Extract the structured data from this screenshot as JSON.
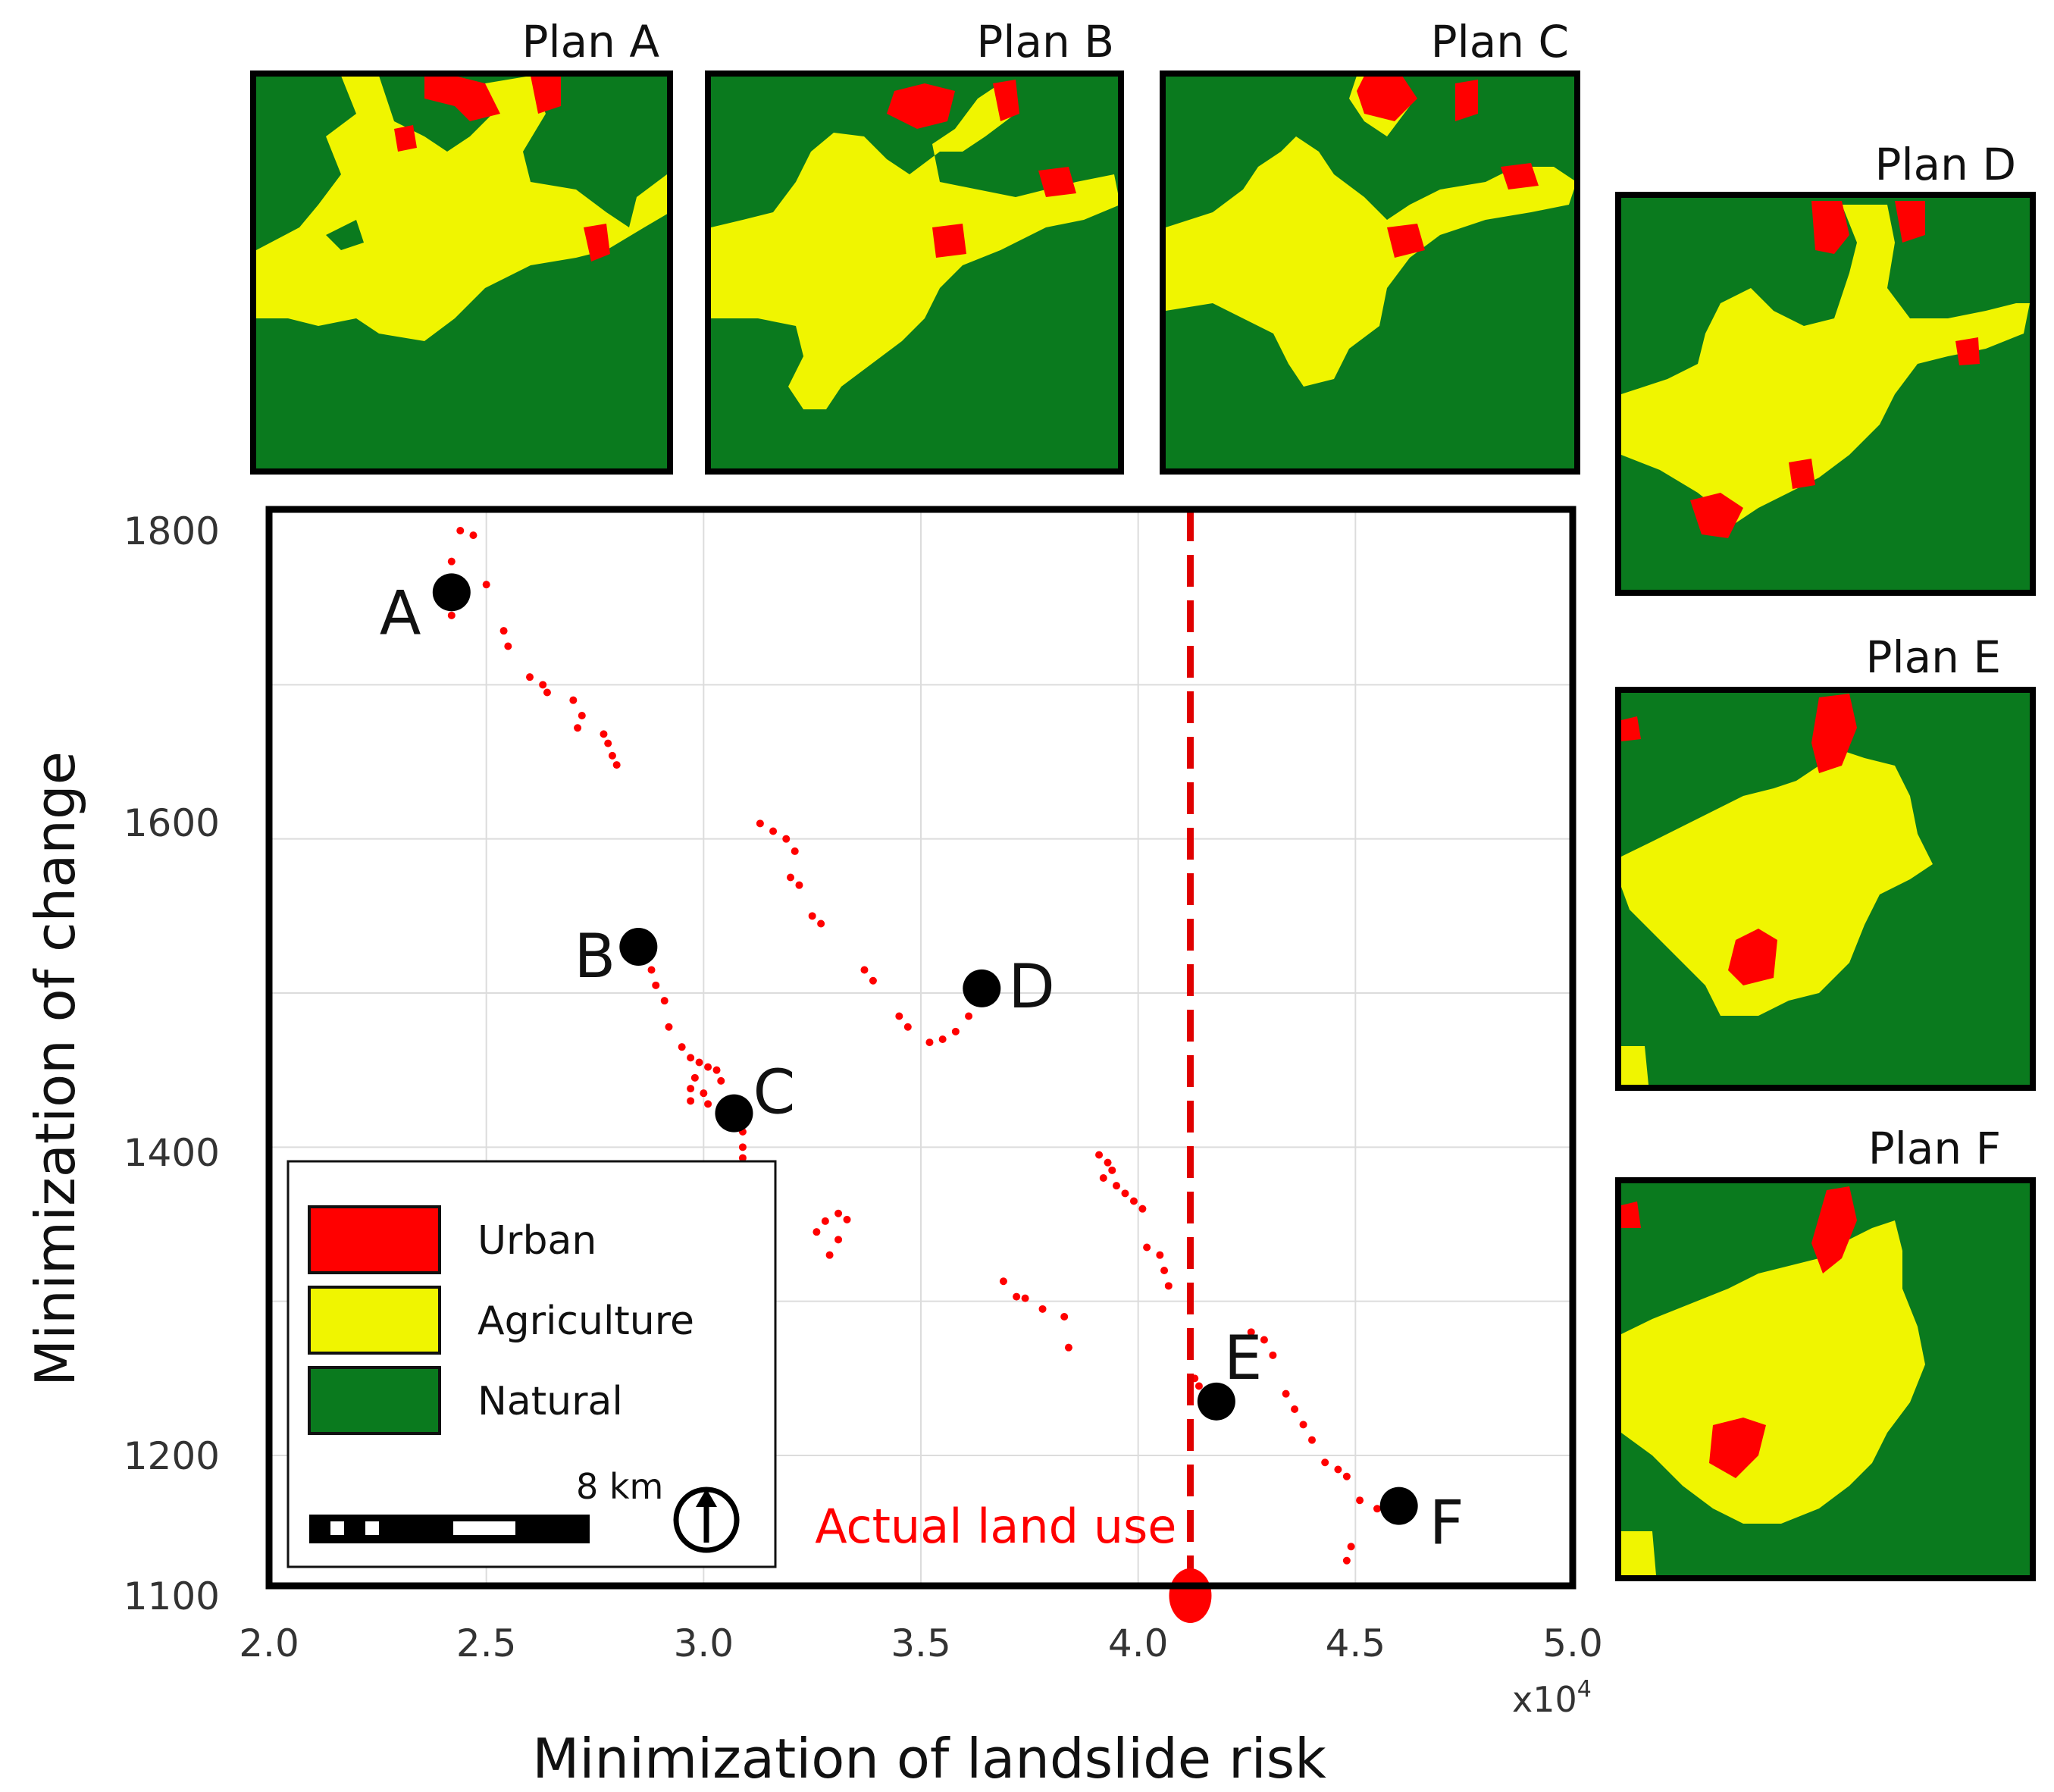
{
  "chart_data": {
    "type": "scatter",
    "xlabel": "Minimization of landslide risk",
    "ylabel": "Minimization of change",
    "x_multiplier_label": "x10",
    "x_multiplier_exponent": "4",
    "xlim": [
      2.0,
      5.0
    ],
    "ylim": [
      1100,
      1800
    ],
    "x_ticks": [
      "2.0",
      "2.5",
      "3.0",
      "3.5",
      "4.0",
      "4.5",
      "5.0"
    ],
    "y_ticks": [
      "1100",
      "1200",
      "1400",
      "1600",
      "1800"
    ],
    "x_tick_values": [
      2.0,
      2.5,
      3.0,
      3.5,
      4.0,
      4.5,
      5.0
    ],
    "y_tick_values": [
      1100,
      1200,
      1400,
      1600,
      1800
    ],
    "x_grid": [
      2.5,
      3.0,
      3.5,
      4.0,
      4.5
    ],
    "y_grid": [
      1200,
      1300,
      1400,
      1500,
      1600,
      1700
    ],
    "grid": true,
    "pareto_points": [
      [
        2.44,
        1800
      ],
      [
        2.47,
        1797
      ],
      [
        2.42,
        1780
      ],
      [
        2.5,
        1765
      ],
      [
        2.42,
        1745
      ],
      [
        2.54,
        1735
      ],
      [
        2.55,
        1725
      ],
      [
        2.6,
        1705
      ],
      [
        2.63,
        1700
      ],
      [
        2.64,
        1695
      ],
      [
        2.7,
        1690
      ],
      [
        2.72,
        1680
      ],
      [
        2.71,
        1672
      ],
      [
        2.77,
        1668
      ],
      [
        2.78,
        1662
      ],
      [
        2.79,
        1654
      ],
      [
        2.8,
        1648
      ],
      [
        3.13,
        1610
      ],
      [
        3.16,
        1605
      ],
      [
        3.19,
        1600
      ],
      [
        3.21,
        1592
      ],
      [
        3.2,
        1575
      ],
      [
        3.22,
        1570
      ],
      [
        3.25,
        1550
      ],
      [
        3.27,
        1545
      ],
      [
        3.37,
        1515
      ],
      [
        3.39,
        1508
      ],
      [
        3.45,
        1485
      ],
      [
        3.47,
        1478
      ],
      [
        3.52,
        1468
      ],
      [
        3.55,
        1470
      ],
      [
        3.58,
        1475
      ],
      [
        3.61,
        1485
      ],
      [
        2.85,
        1522
      ],
      [
        2.88,
        1515
      ],
      [
        2.89,
        1505
      ],
      [
        2.91,
        1495
      ],
      [
        2.92,
        1478
      ],
      [
        2.95,
        1465
      ],
      [
        2.97,
        1458
      ],
      [
        2.99,
        1455
      ],
      [
        3.01,
        1452
      ],
      [
        3.03,
        1450
      ],
      [
        2.98,
        1445
      ],
      [
        3.04,
        1443
      ],
      [
        2.97,
        1438
      ],
      [
        3.0,
        1435
      ],
      [
        2.97,
        1430
      ],
      [
        3.01,
        1428
      ],
      [
        3.05,
        1425
      ],
      [
        3.08,
        1418
      ],
      [
        3.09,
        1410
      ],
      [
        3.09,
        1400
      ],
      [
        3.09,
        1393
      ],
      [
        3.28,
        1352
      ],
      [
        3.31,
        1357
      ],
      [
        3.33,
        1353
      ],
      [
        3.26,
        1345
      ],
      [
        3.31,
        1340
      ],
      [
        3.29,
        1330
      ],
      [
        3.69,
        1313
      ],
      [
        3.72,
        1303
      ],
      [
        3.74,
        1302
      ],
      [
        3.78,
        1295
      ],
      [
        3.83,
        1290
      ],
      [
        3.84,
        1270
      ],
      [
        3.91,
        1395
      ],
      [
        3.93,
        1390
      ],
      [
        3.94,
        1385
      ],
      [
        3.92,
        1380
      ],
      [
        3.95,
        1375
      ],
      [
        3.97,
        1370
      ],
      [
        3.99,
        1365
      ],
      [
        4.01,
        1360
      ],
      [
        4.02,
        1335
      ],
      [
        4.05,
        1330
      ],
      [
        4.06,
        1320
      ],
      [
        4.07,
        1310
      ],
      [
        4.13,
        1250
      ],
      [
        4.14,
        1245
      ],
      [
        4.16,
        1240
      ],
      [
        4.26,
        1280
      ],
      [
        4.29,
        1275
      ],
      [
        4.31,
        1265
      ],
      [
        4.34,
        1240
      ],
      [
        4.36,
        1230
      ],
      [
        4.38,
        1220
      ],
      [
        4.4,
        1210
      ],
      [
        4.43,
        1195
      ],
      [
        4.46,
        1190
      ],
      [
        4.48,
        1185
      ],
      [
        4.51,
        1168
      ],
      [
        4.55,
        1162
      ],
      [
        4.49,
        1135
      ],
      [
        4.48,
        1125
      ]
    ],
    "selected_plans": [
      {
        "label": "A",
        "x": 2.42,
        "y": 1760
      },
      {
        "label": "B",
        "x": 2.85,
        "y": 1530
      },
      {
        "label": "C",
        "x": 3.07,
        "y": 1422
      },
      {
        "label": "D",
        "x": 3.64,
        "y": 1503
      },
      {
        "label": "E",
        "x": 4.18,
        "y": 1235
      },
      {
        "label": "F",
        "x": 4.6,
        "y": 1164
      }
    ],
    "actual_land_use": {
      "x": 4.12,
      "y": 1100,
      "label": "Actual land use"
    },
    "legend": [
      {
        "label": "Urban",
        "color": "#ff0000"
      },
      {
        "label": "Agriculture",
        "color": "#f0f500"
      },
      {
        "label": "Natural",
        "color": "#0a7a1e"
      }
    ],
    "legend_position": "bottom-left",
    "scale_bar_label": "8 km",
    "colors": {
      "points": "#ff0000",
      "marker": "#000000",
      "reference_line": "#e00000",
      "urban": "#ff0000",
      "agriculture": "#f0f500",
      "natural": "#0a7a1e"
    }
  },
  "plans": [
    {
      "key": "A",
      "title": "Plan A"
    },
    {
      "key": "B",
      "title": "Plan B"
    },
    {
      "key": "C",
      "title": "Plan C"
    },
    {
      "key": "D",
      "title": "Plan D"
    },
    {
      "key": "E",
      "title": "Plan E"
    },
    {
      "key": "F",
      "title": "Plan F"
    }
  ]
}
